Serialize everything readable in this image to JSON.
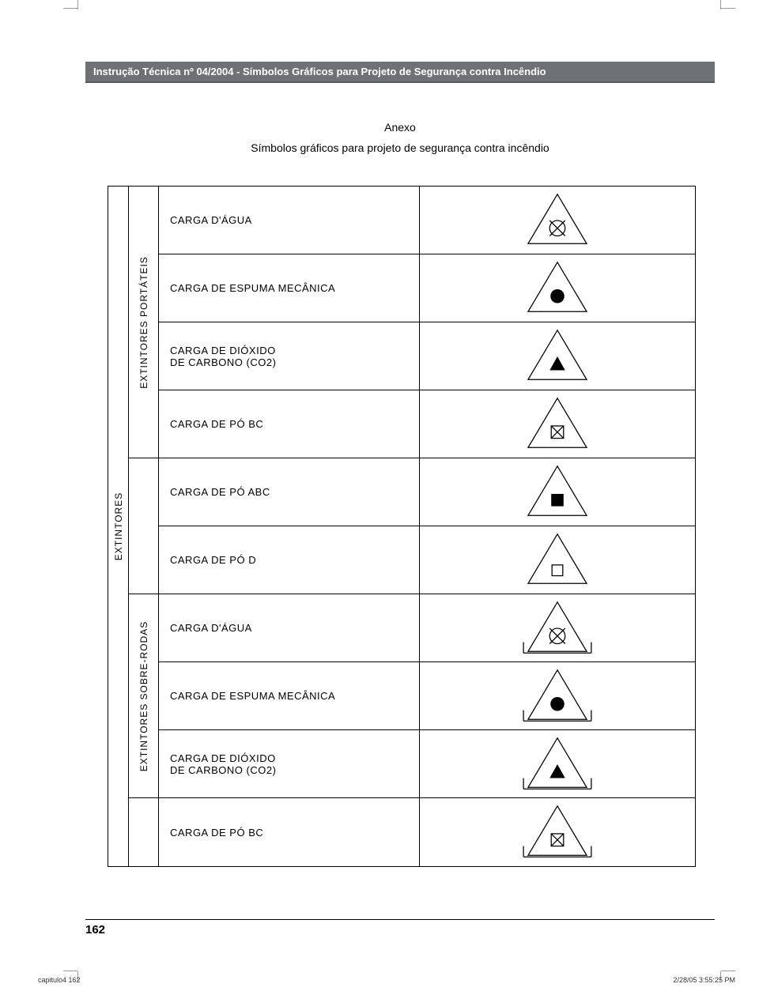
{
  "header": "Instrução Técnica nº 04/2004  -  Símbolos Gráficos para Projeto de Segurança contra Incêndio",
  "anexo_title": "Anexo",
  "anexo_sub": "Símbolos gráficos para projeto de segurança contra incêndio",
  "outer_label": "EXTINTORES",
  "groups": [
    {
      "label": "EXTINTORES  PORTÁTEIS",
      "span": 4
    },
    {
      "label": "",
      "span": 2
    },
    {
      "label": "EXTINTORES  SOBRE-RODAS",
      "span": 3
    },
    {
      "label": "",
      "span": 1
    }
  ],
  "rows": [
    {
      "label": "CARGA  D'ÁGUA",
      "symbol": "agua",
      "wheels": false
    },
    {
      "label": "CARGA  DE  ESPUMA  MECÂNICA",
      "symbol": "espuma",
      "wheels": false
    },
    {
      "label": "CARGA  DE  DIÓXIDO\nDE  CARBONO  (CO2)",
      "symbol": "co2",
      "wheels": false
    },
    {
      "label": "CARGA  DE  PÓ     BC",
      "symbol": "po_bc",
      "wheels": false
    },
    {
      "label": "CARGA  DE  PÓ     ABC",
      "symbol": "po_abc",
      "wheels": false
    },
    {
      "label": "CARGA  DE  PÓ     D",
      "symbol": "po_d",
      "wheels": false
    },
    {
      "label": "CARGA  D'ÁGUA",
      "symbol": "agua",
      "wheels": true
    },
    {
      "label": "CARGA  DE  ESPUMA  MECÂNICA",
      "symbol": "espuma",
      "wheels": true
    },
    {
      "label": "CARGA  DE  DIÓXIDO\nDE  CARBONO  (CO2)",
      "symbol": "co2",
      "wheels": true
    },
    {
      "label": "CARGA  DE  PÓ     BC",
      "symbol": "po_bc",
      "wheels": true
    }
  ],
  "colors": {
    "stroke": "#000000",
    "fill_solid": "#000000",
    "fill_none": "none",
    "bg": "#ffffff"
  },
  "page_number": "162",
  "footer_left": "capitulo4   162",
  "footer_right": "2/28/05   3:55:25 PM"
}
